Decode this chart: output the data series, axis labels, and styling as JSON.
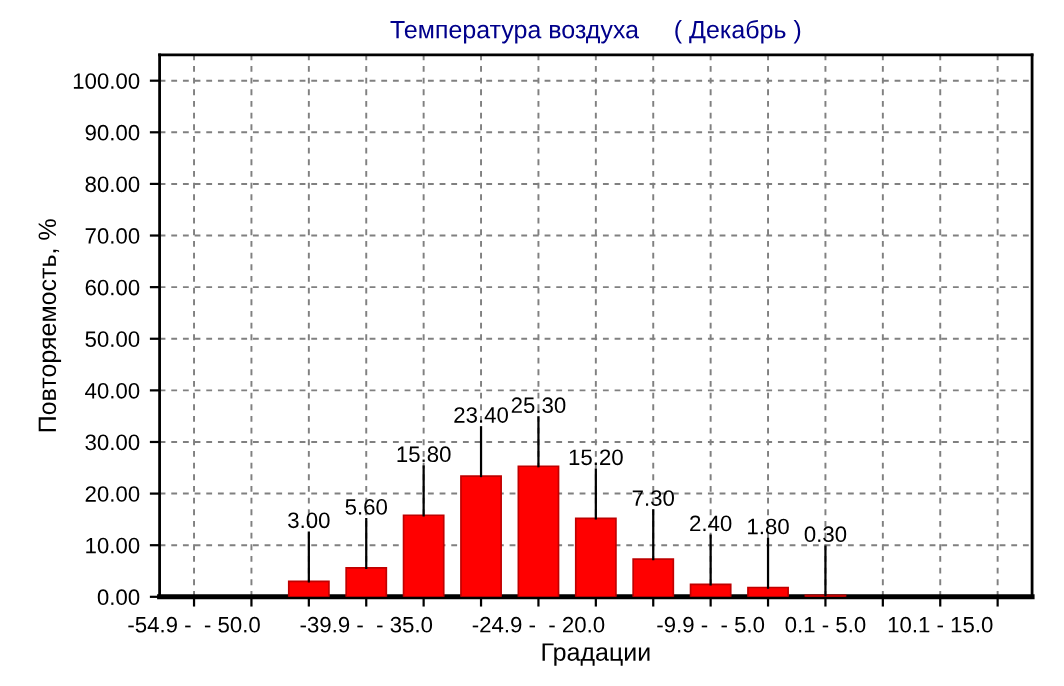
{
  "chart_data": {
    "type": "bar",
    "title": "Температура воздуха     ( Декабрь )",
    "xlabel": "Градации",
    "ylabel": "Повторяемость, %",
    "categories": [
      "-54.9 -  - 50.0",
      null,
      null,
      "-39.9 -  - 35.0",
      null,
      null,
      "-24.9 -  - 20.0",
      null,
      null,
      "-9.9 -  - 5.0",
      null,
      "0.1 - 5.0",
      null,
      "10.1 - 15.0",
      null
    ],
    "values": [
      null,
      null,
      3.0,
      5.6,
      15.8,
      23.4,
      25.3,
      15.2,
      7.3,
      2.4,
      1.8,
      0.3,
      null,
      null,
      null
    ],
    "value_labels": [
      null,
      null,
      "3.00",
      "5.60",
      "15.80",
      "23.40",
      "25.30",
      "15.20",
      "7.30",
      "2.40",
      "1.80",
      "0.30",
      null,
      null,
      null
    ],
    "color": "#ff0000",
    "ylim": [
      0,
      105
    ],
    "yticks": [
      {
        "value": 0,
        "label": "0.00"
      },
      {
        "value": 10,
        "label": "10.00"
      },
      {
        "value": 20,
        "label": "20.00"
      },
      {
        "value": 30,
        "label": "30.00"
      },
      {
        "value": 40,
        "label": "40.00"
      },
      {
        "value": 50,
        "label": "50.00"
      },
      {
        "value": 60,
        "label": "60.00"
      },
      {
        "value": 70,
        "label": "70.00"
      },
      {
        "value": 80,
        "label": "80.00"
      },
      {
        "value": 90,
        "label": "90.00"
      },
      {
        "value": 100,
        "label": "100.00"
      }
    ],
    "grid": true
  }
}
